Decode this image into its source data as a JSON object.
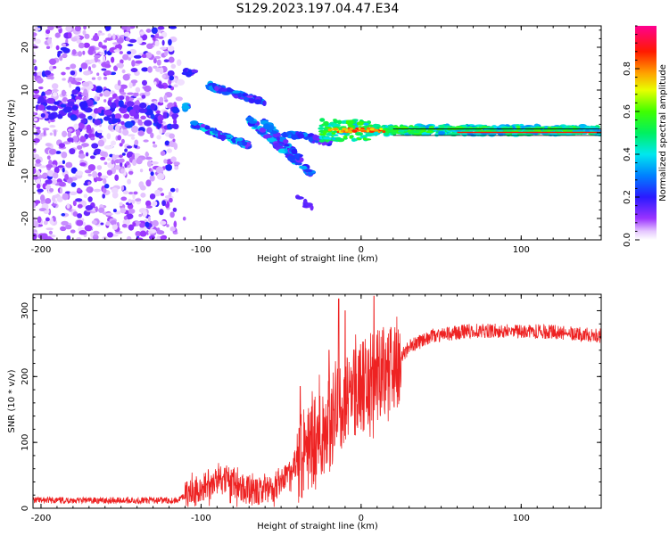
{
  "title": "S129.2023.197.04.47.E34",
  "colors": {
    "snr_line": "#ee2222",
    "frame": "#000000"
  },
  "chart_data": [
    {
      "type": "heatmap",
      "xlabel": "Height of straight line (km)",
      "ylabel": "Frequency (Hz)",
      "xlim": [
        -205,
        150
      ],
      "ylim": [
        -25,
        25
      ],
      "xticks": [
        -200,
        -100,
        0,
        100
      ],
      "yticks": [
        -20,
        -10,
        0,
        10,
        20
      ],
      "colorbar": {
        "label": "Normalized spectral amplitude",
        "range": [
          0,
          1
        ],
        "ticks": [
          "0.0",
          "0.2",
          "0.4",
          "0.6",
          "0.8"
        ],
        "colormap": "rainbow (white → purple → blue → cyan → green → yellow → red → magenta)"
      },
      "features": [
        {
          "x": [
            -205,
            -115
          ],
          "f": [
            -25,
            25
          ],
          "desc": "broadband scattered noise"
        },
        {
          "x": [
            -110,
            -30
          ],
          "f": [
            13,
            -11
          ],
          "desc": "descending streaks"
        },
        {
          "x": [
            -35,
            150
          ],
          "f": [
            1,
            0
          ],
          "desc": "stable carrier near 0 Hz"
        }
      ]
    },
    {
      "type": "line",
      "xlabel": "Height of straight line (km)",
      "ylabel": "SNR (10 * v/v)",
      "xlim": [
        -205,
        150
      ],
      "ylim": [
        0,
        325
      ],
      "xticks": [
        -200,
        -100,
        0,
        100
      ],
      "yticks": [
        0,
        100,
        200,
        300
      ],
      "series": [
        {
          "trend": [
            {
              "x": -205,
              "y": 12
            },
            {
              "x": -115,
              "y": 12
            },
            {
              "x": -100,
              "y": 30
            },
            {
              "x": -85,
              "y": 45
            },
            {
              "x": -70,
              "y": 25
            },
            {
              "x": -55,
              "y": 30
            },
            {
              "x": -40,
              "y": 70
            },
            {
              "x": -25,
              "y": 110
            },
            {
              "x": -10,
              "y": 160
            },
            {
              "x": 5,
              "y": 195
            },
            {
              "x": 20,
              "y": 215
            },
            {
              "x": 30,
              "y": 245
            },
            {
              "x": 45,
              "y": 262
            },
            {
              "x": 70,
              "y": 270
            },
            {
              "x": 120,
              "y": 268
            },
            {
              "x": 150,
              "y": 262
            }
          ],
          "peaks": [
            {
              "x": -14,
              "y": 318
            },
            {
              "x": -10,
              "y": 300
            },
            {
              "x": 8,
              "y": 322
            },
            {
              "x": -38,
              "y": 185
            },
            {
              "x": -20,
              "y": 240
            }
          ]
        }
      ]
    }
  ]
}
